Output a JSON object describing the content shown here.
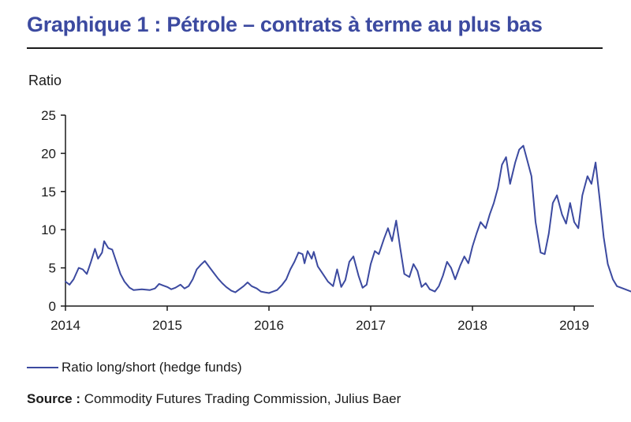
{
  "title": "Graphique 1 : Pétrole – contrats à terme au plus bas",
  "source": {
    "label": "Source :",
    "text": "Commodity Futures Trading Commission, Julius Baer"
  },
  "chart_data": {
    "type": "line",
    "ylabel": "Ratio",
    "xlabel": "",
    "ylim": [
      0,
      25
    ],
    "yticks": [
      0,
      5,
      10,
      15,
      20,
      25
    ],
    "xlim": [
      2014,
      2019
    ],
    "xticks": [
      2014,
      2015,
      2016,
      2017,
      2018,
      2019
    ],
    "grid": false,
    "legend_position": "bottom-left",
    "series": [
      {
        "name": "Ratio long/short (hedge funds)",
        "color": "#3c4aa0",
        "points": [
          [
            2014.0,
            3.2
          ],
          [
            2014.04,
            2.8
          ],
          [
            2014.08,
            3.5
          ],
          [
            2014.13,
            5.0
          ],
          [
            2014.17,
            4.8
          ],
          [
            2014.21,
            4.2
          ],
          [
            2014.25,
            5.8
          ],
          [
            2014.29,
            7.5
          ],
          [
            2014.32,
            6.2
          ],
          [
            2014.36,
            7.0
          ],
          [
            2014.38,
            8.5
          ],
          [
            2014.42,
            7.6
          ],
          [
            2014.46,
            7.4
          ],
          [
            2014.5,
            5.8
          ],
          [
            2014.54,
            4.2
          ],
          [
            2014.58,
            3.2
          ],
          [
            2014.63,
            2.4
          ],
          [
            2014.67,
            2.1
          ],
          [
            2014.75,
            2.2
          ],
          [
            2014.83,
            2.1
          ],
          [
            2014.88,
            2.3
          ],
          [
            2014.92,
            2.9
          ],
          [
            2014.96,
            2.7
          ],
          [
            2015.0,
            2.5
          ],
          [
            2015.04,
            2.2
          ],
          [
            2015.08,
            2.4
          ],
          [
            2015.13,
            2.8
          ],
          [
            2015.17,
            2.3
          ],
          [
            2015.21,
            2.6
          ],
          [
            2015.25,
            3.5
          ],
          [
            2015.29,
            4.8
          ],
          [
            2015.33,
            5.4
          ],
          [
            2015.37,
            5.9
          ],
          [
            2015.42,
            5.0
          ],
          [
            2015.46,
            4.3
          ],
          [
            2015.5,
            3.6
          ],
          [
            2015.54,
            3.0
          ],
          [
            2015.58,
            2.5
          ],
          [
            2015.63,
            2.0
          ],
          [
            2015.67,
            1.8
          ],
          [
            2015.71,
            2.2
          ],
          [
            2015.75,
            2.6
          ],
          [
            2015.79,
            3.1
          ],
          [
            2015.83,
            2.6
          ],
          [
            2015.88,
            2.3
          ],
          [
            2015.92,
            1.9
          ],
          [
            2015.96,
            1.8
          ],
          [
            2016.0,
            1.7
          ],
          [
            2016.04,
            1.9
          ],
          [
            2016.08,
            2.1
          ],
          [
            2016.13,
            2.8
          ],
          [
            2016.17,
            3.5
          ],
          [
            2016.21,
            4.8
          ],
          [
            2016.25,
            5.8
          ],
          [
            2016.29,
            7.0
          ],
          [
            2016.33,
            6.8
          ],
          [
            2016.35,
            5.6
          ],
          [
            2016.38,
            7.2
          ],
          [
            2016.42,
            6.2
          ],
          [
            2016.44,
            7.1
          ],
          [
            2016.48,
            5.2
          ],
          [
            2016.54,
            4.0
          ],
          [
            2016.58,
            3.2
          ],
          [
            2016.63,
            2.6
          ],
          [
            2016.67,
            4.8
          ],
          [
            2016.71,
            2.5
          ],
          [
            2016.75,
            3.4
          ],
          [
            2016.79,
            5.8
          ],
          [
            2016.83,
            6.5
          ],
          [
            2016.88,
            4.0
          ],
          [
            2016.92,
            2.4
          ],
          [
            2016.96,
            2.8
          ],
          [
            2017.0,
            5.5
          ],
          [
            2017.04,
            7.2
          ],
          [
            2017.08,
            6.8
          ],
          [
            2017.13,
            8.8
          ],
          [
            2017.17,
            10.2
          ],
          [
            2017.21,
            8.5
          ],
          [
            2017.25,
            11.2
          ],
          [
            2017.29,
            7.6
          ],
          [
            2017.33,
            4.2
          ],
          [
            2017.38,
            3.8
          ],
          [
            2017.42,
            5.5
          ],
          [
            2017.46,
            4.6
          ],
          [
            2017.5,
            2.5
          ],
          [
            2017.54,
            3.0
          ],
          [
            2017.58,
            2.2
          ],
          [
            2017.63,
            1.9
          ],
          [
            2017.67,
            2.6
          ],
          [
            2017.71,
            4.0
          ],
          [
            2017.75,
            5.8
          ],
          [
            2017.79,
            5.0
          ],
          [
            2017.83,
            3.5
          ],
          [
            2017.88,
            5.3
          ],
          [
            2017.92,
            6.5
          ],
          [
            2017.96,
            5.6
          ],
          [
            2018.0,
            7.8
          ],
          [
            2018.04,
            9.5
          ],
          [
            2018.08,
            11.0
          ],
          [
            2018.13,
            10.2
          ],
          [
            2018.17,
            12.0
          ],
          [
            2018.21,
            13.5
          ],
          [
            2018.25,
            15.5
          ],
          [
            2018.29,
            18.5
          ],
          [
            2018.33,
            19.5
          ],
          [
            2018.37,
            16.0
          ],
          [
            2018.42,
            18.8
          ],
          [
            2018.46,
            20.5
          ],
          [
            2018.5,
            21.0
          ],
          [
            2018.54,
            19.0
          ],
          [
            2018.58,
            17.0
          ],
          [
            2018.62,
            11.0
          ],
          [
            2018.67,
            7.0
          ],
          [
            2018.71,
            6.8
          ],
          [
            2018.75,
            9.5
          ],
          [
            2018.79,
            13.5
          ],
          [
            2018.83,
            14.5
          ],
          [
            2018.88,
            12.0
          ],
          [
            2018.92,
            10.8
          ],
          [
            2018.96,
            13.5
          ],
          [
            2019.0,
            11.0
          ],
          [
            2019.04,
            10.2
          ],
          [
            2019.08,
            14.5
          ],
          [
            2019.13,
            17.0
          ],
          [
            2019.17,
            16.0
          ],
          [
            2019.21,
            18.8
          ],
          [
            2019.25,
            14.0
          ],
          [
            2019.29,
            9.0
          ],
          [
            2019.33,
            5.5
          ],
          [
            2019.38,
            3.5
          ],
          [
            2019.42,
            2.6
          ],
          [
            2019.5,
            2.2
          ],
          [
            2019.58,
            1.8
          ]
        ]
      }
    ]
  }
}
